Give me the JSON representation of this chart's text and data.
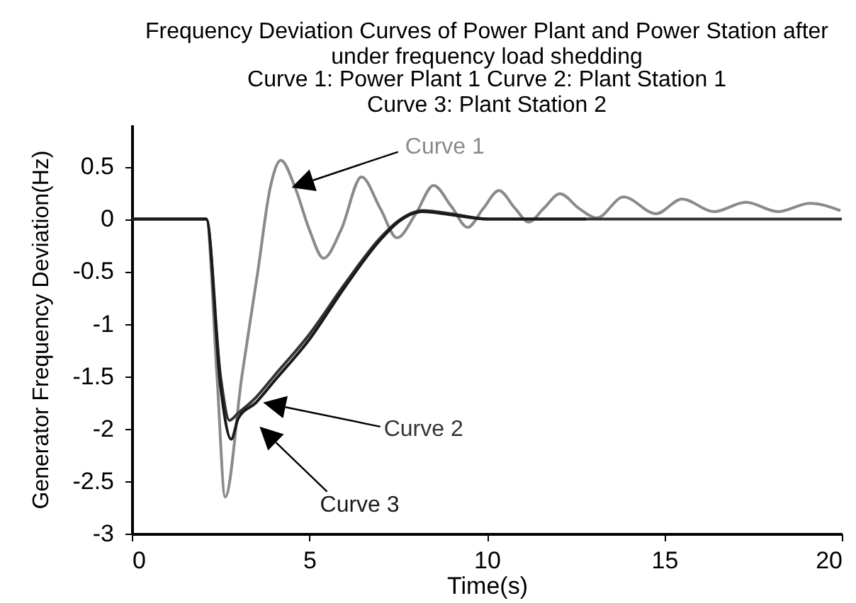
{
  "chart_data": {
    "type": "line",
    "title": "Frequency Deviation Curves of Power Plant and  Power Station after\nunder frequency load shedding",
    "subtitle": "Curve 1: Power Plant 1       Curve 2: Plant Station 1\nCurve 3: Plant Station 2",
    "xlabel": "Time(s)",
    "ylabel": "Generator Frequency Deviation(Hz)",
    "xlim": [
      0,
      20
    ],
    "xticks": [
      0,
      5,
      10,
      15,
      20
    ],
    "ylim": [
      -3,
      0.9
    ],
    "yticks": [
      -3,
      -2.5,
      -2,
      -1.5,
      -1,
      -0.5,
      0,
      0.5
    ],
    "line_style": "solid",
    "series": [
      {
        "name": "Curve 1",
        "color": "#8a8a8a",
        "x": [
          0,
          2.1,
          2.4,
          2.63,
          3.1,
          3.55,
          3.9,
          4.2,
          4.6,
          5.0,
          5.4,
          5.9,
          6.47,
          7.0,
          7.47,
          8.0,
          8.5,
          9.0,
          9.46,
          9.9,
          10.34,
          10.8,
          11.18,
          11.6,
          12.06,
          12.6,
          13.1,
          13.85,
          14.77,
          15.5,
          16.4,
          17.3,
          18.2,
          19.1,
          19.96
        ],
        "values": [
          0,
          0,
          -1.5,
          -2.65,
          -1.5,
          -0.5,
          0.3,
          0.56,
          0.3,
          -0.1,
          -0.375,
          -0.1,
          0.4,
          0.1,
          -0.18,
          0.05,
          0.32,
          0.12,
          -0.08,
          0.1,
          0.27,
          0.1,
          -0.03,
          0.1,
          0.24,
          0.1,
          0.01,
          0.21,
          0.05,
          0.19,
          0.07,
          0.16,
          0.07,
          0.15,
          0.08
        ]
      },
      {
        "name": "Curve 2",
        "color": "#333333",
        "x": [
          0,
          2.1,
          2.5,
          2.75,
          3.0,
          3.5,
          4,
          5,
          6,
          7,
          7.5,
          8.2,
          9,
          10,
          12,
          20
        ],
        "values": [
          0,
          0,
          -1.5,
          -1.92,
          -1.85,
          -1.7,
          -1.5,
          -1.1,
          -0.62,
          -0.18,
          -0.02,
          0.08,
          0.05,
          0,
          0,
          0
        ]
      },
      {
        "name": "Curve 3",
        "color": "#1a1a1a",
        "x": [
          0,
          2.1,
          2.5,
          2.8,
          3.0,
          3.5,
          4,
          5,
          6,
          7,
          7.5,
          8.2,
          9,
          10,
          12.8
        ],
        "values": [
          0,
          0,
          -1.6,
          -2.1,
          -1.9,
          -1.75,
          -1.55,
          -1.15,
          -0.65,
          -0.2,
          -0.03,
          0.07,
          0.04,
          0,
          0
        ]
      }
    ]
  }
}
